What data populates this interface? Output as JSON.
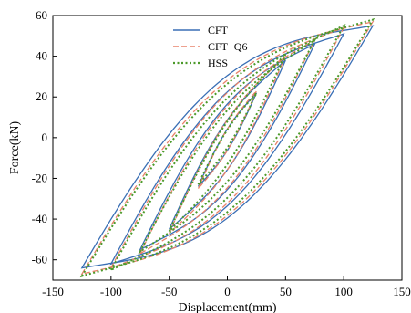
{
  "chart_data": {
    "type": "line",
    "xlabel": "Displacement(mm)",
    "ylabel": "Force(kN)",
    "xlim": [
      -150,
      150
    ],
    "ylim": [
      -70,
      60
    ],
    "x_ticks": [
      -150,
      -100,
      -50,
      0,
      50,
      100,
      150
    ],
    "y_ticks": [
      -60,
      -40,
      -20,
      0,
      20,
      40,
      60
    ],
    "x_tick_labels": [
      "-150",
      "-100",
      "-50",
      "0",
      "50",
      "100",
      "150"
    ],
    "y_tick_labels": [
      "-60",
      "-40",
      "-20",
      "0",
      "20",
      "40",
      "60"
    ],
    "grid": false,
    "legend_position": "top-center",
    "series": [
      {
        "name": "CFT",
        "color": "#3a6fb5",
        "dash": "solid",
        "loops": [
          {
            "amp": 25,
            "peak_pos": 22,
            "peak_neg": -24,
            "width": 6
          },
          {
            "amp": 50,
            "peak_pos": 38,
            "peak_neg": -45,
            "width": 14
          },
          {
            "amp": 75,
            "peak_pos": 46,
            "peak_neg": -55,
            "width": 24
          },
          {
            "amp": 100,
            "peak_pos": 51,
            "peak_neg": -62,
            "width": 32
          },
          {
            "amp": 125,
            "peak_pos": 55,
            "peak_neg": -64,
            "width": 40
          }
        ]
      },
      {
        "name": "CFT+Q6",
        "color": "#e8826a",
        "dash": "dashed",
        "loops": [
          {
            "amp": 25,
            "peak_pos": 23,
            "peak_neg": -25,
            "width": 6
          },
          {
            "amp": 50,
            "peak_pos": 40,
            "peak_neg": -47,
            "width": 14
          },
          {
            "amp": 75,
            "peak_pos": 48,
            "peak_neg": -57,
            "width": 23
          },
          {
            "amp": 100,
            "peak_pos": 54,
            "peak_neg": -64,
            "width": 31
          },
          {
            "amp": 125,
            "peak_pos": 57,
            "peak_neg": -67,
            "width": 38
          }
        ]
      },
      {
        "name": "HSS",
        "color": "#4c9a2a",
        "dash": "dotted",
        "loops": [
          {
            "amp": 25,
            "peak_pos": 22,
            "peak_neg": -23,
            "width": 5
          },
          {
            "amp": 50,
            "peak_pos": 41,
            "peak_neg": -46,
            "width": 12
          },
          {
            "amp": 75,
            "peak_pos": 48,
            "peak_neg": -56,
            "width": 20
          },
          {
            "amp": 100,
            "peak_pos": 55,
            "peak_neg": -65,
            "width": 28
          },
          {
            "amp": 125,
            "peak_pos": 58,
            "peak_neg": -68,
            "width": 36
          }
        ]
      }
    ]
  }
}
